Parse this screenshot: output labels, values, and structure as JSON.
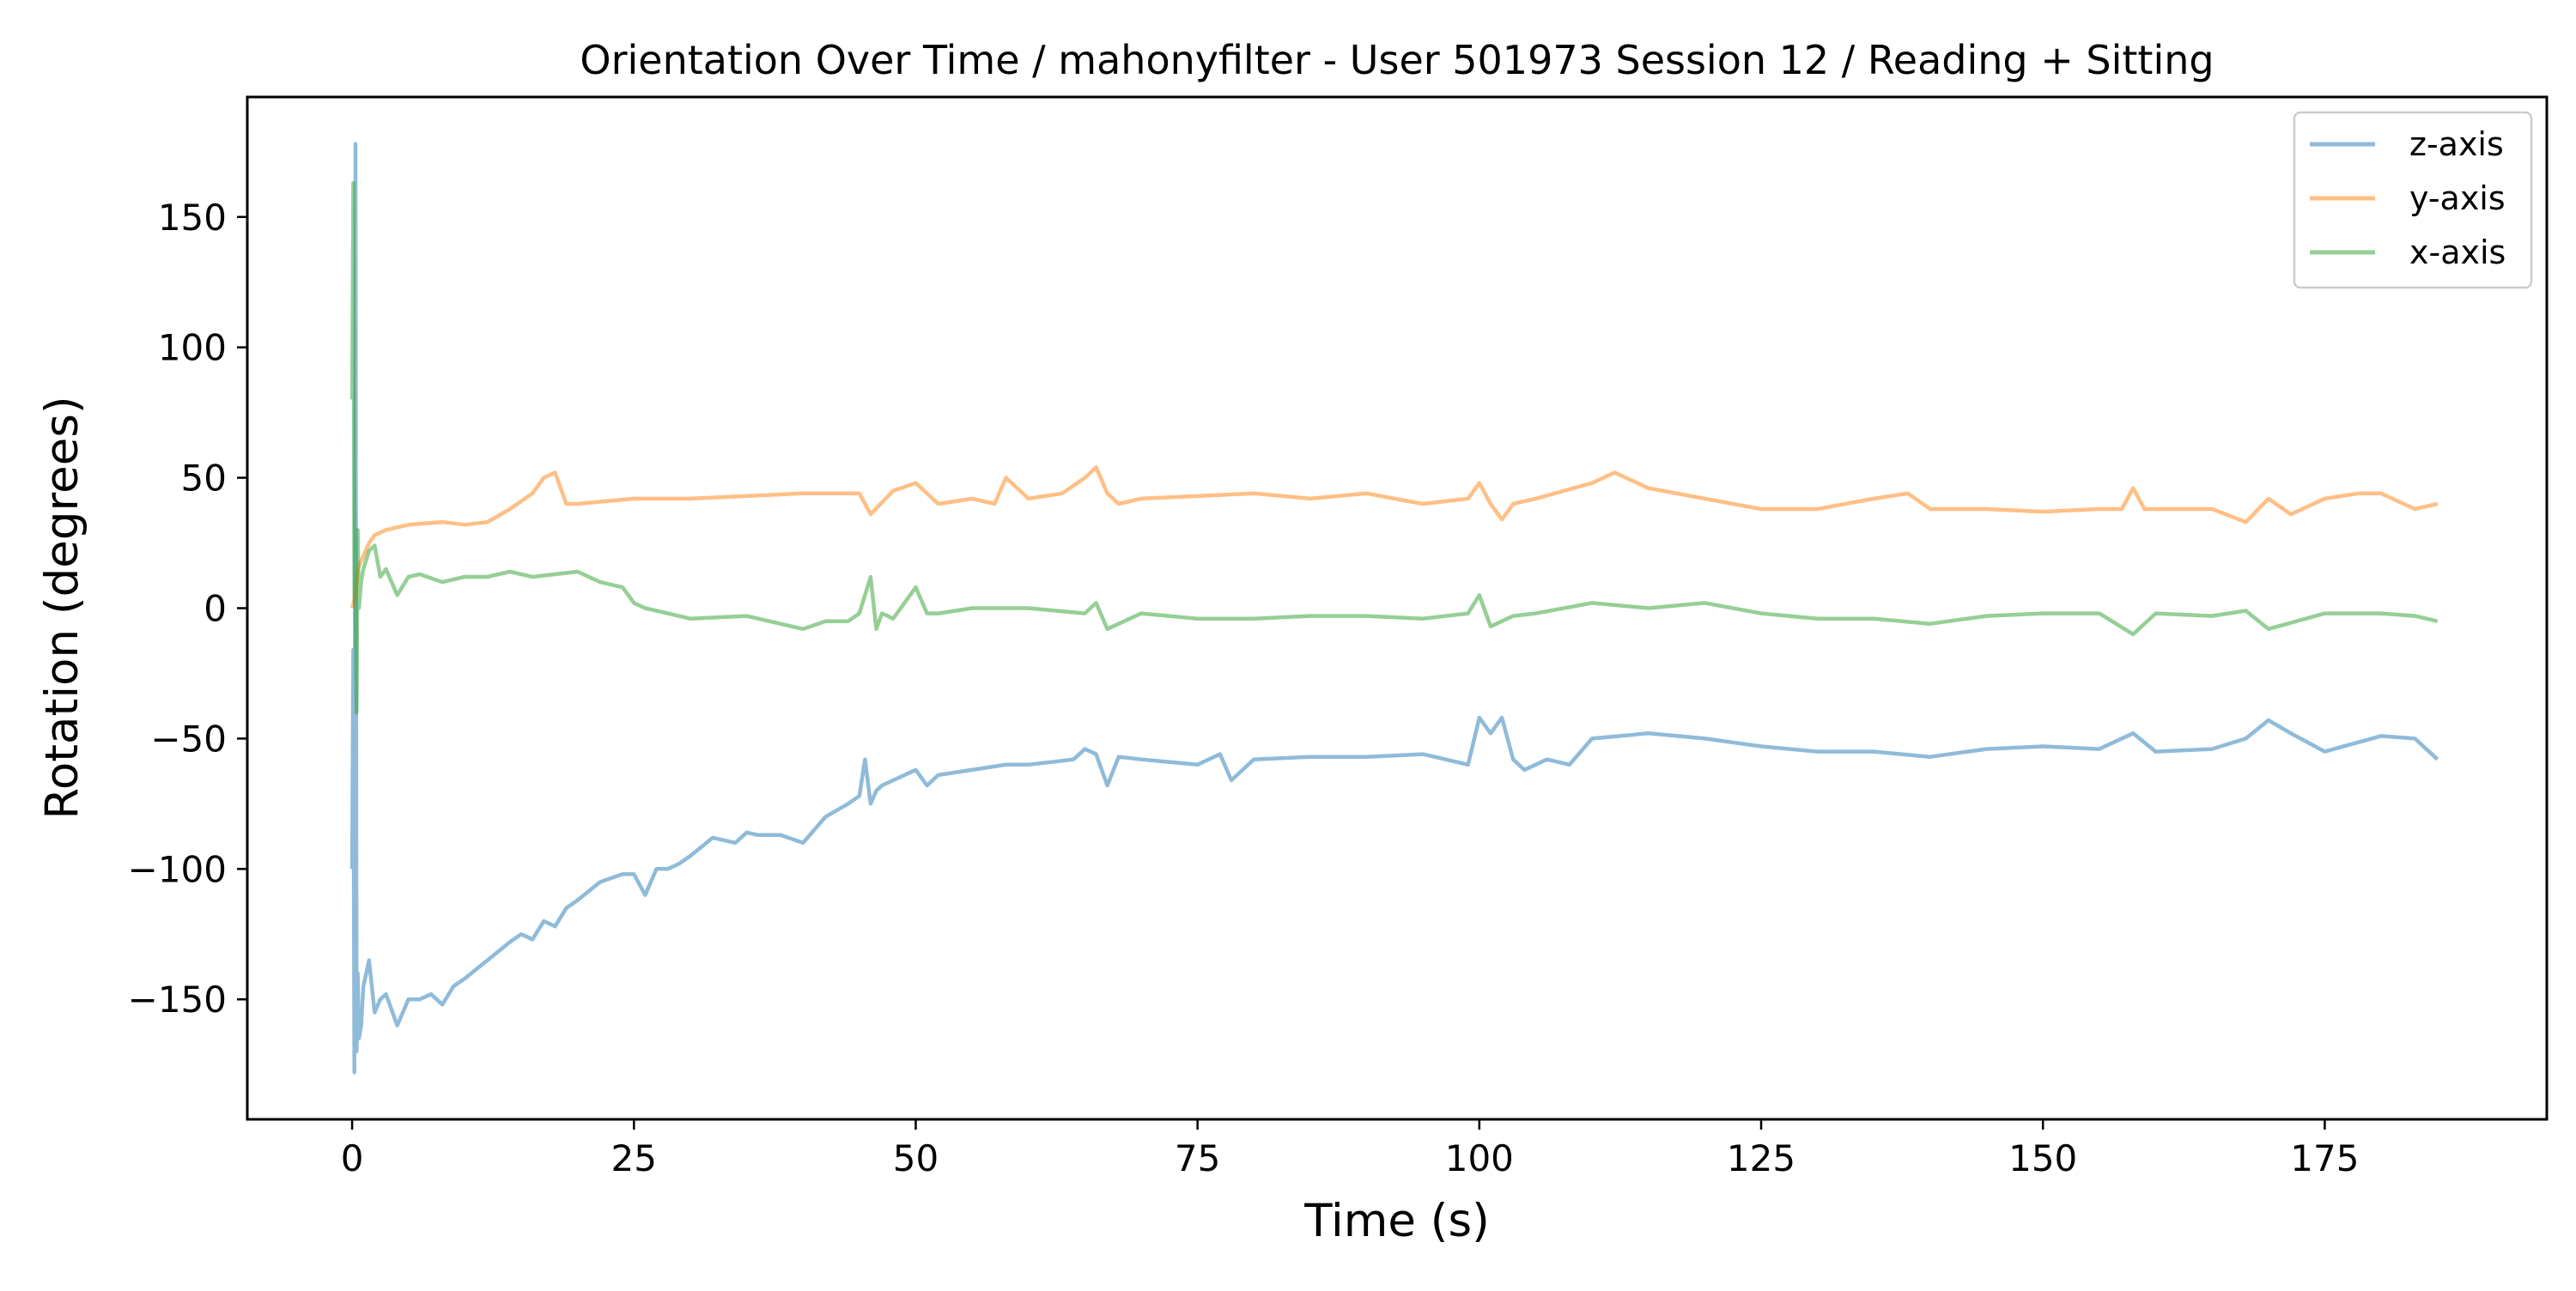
{
  "chart_data": {
    "type": "line",
    "title": "Orientation Over Time / mahonyfilter - User 501973 Session 12 / Reading + Sitting",
    "xlabel": "Time (s)",
    "ylabel": "Rotation (degrees)",
    "xlim": [
      -9.3,
      194.7
    ],
    "ylim": [
      -196,
      196
    ],
    "x_ticks": [
      0,
      25,
      50,
      75,
      100,
      125,
      150,
      175
    ],
    "x_tick_labels": [
      "0",
      "25",
      "50",
      "75",
      "100",
      "125",
      "150",
      "175"
    ],
    "y_ticks": [
      -150,
      -100,
      -50,
      0,
      50,
      100,
      150
    ],
    "y_tick_labels": [
      "−150",
      "−100",
      "−50",
      "0",
      "50",
      "100",
      "150"
    ],
    "grid": false,
    "legend": "top-right",
    "series": [
      {
        "name": "z-axis",
        "color": "#1f77b4",
        "x": [
          0,
          0.1,
          0.2,
          0.3,
          0.4,
          0.5,
          0.6,
          0.8,
          1,
          1.5,
          2,
          2.5,
          3,
          4,
          5,
          6,
          7,
          8,
          9,
          10,
          12,
          14,
          15,
          16,
          17,
          18,
          19,
          20,
          22,
          24,
          25,
          26,
          27,
          28,
          29,
          30,
          32,
          34,
          35,
          36,
          38,
          40,
          42,
          44,
          45,
          45.5,
          46,
          46.5,
          47,
          48,
          50,
          51,
          52,
          55,
          58,
          60,
          62,
          64,
          65,
          66,
          67,
          68,
          70,
          75,
          77,
          78,
          80,
          85,
          90,
          95,
          99,
          100,
          101,
          102,
          103,
          104,
          105,
          106,
          108,
          110,
          115,
          120,
          125,
          130,
          135,
          140,
          145,
          150,
          155,
          158,
          160,
          165,
          168,
          170,
          172,
          175,
          180,
          183,
          185
        ],
        "values": [
          -100,
          -16,
          -178,
          178,
          -170,
          -140,
          -165,
          -160,
          -145,
          -135,
          -155,
          -150,
          -148,
          -160,
          -150,
          -150,
          -148,
          -152,
          -145,
          -142,
          -135,
          -128,
          -125,
          -127,
          -120,
          -122,
          -115,
          -112,
          -105,
          -102,
          -102,
          -110,
          -100,
          -100,
          -98,
          -95,
          -88,
          -90,
          -86,
          -87,
          -87,
          -90,
          -80,
          -75,
          -72,
          -58,
          -75,
          -70,
          -68,
          -66,
          -62,
          -68,
          -64,
          -62,
          -60,
          -60,
          -59,
          -58,
          -54,
          -56,
          -68,
          -57,
          -58,
          -60,
          -56,
          -66,
          -58,
          -57,
          -57,
          -56,
          -60,
          -42,
          -48,
          -42,
          -58,
          -62,
          -60,
          -58,
          -60,
          -50,
          -48,
          -50,
          -53,
          -55,
          -55,
          -57,
          -54,
          -53,
          -54,
          -48,
          -55,
          -54,
          -50,
          -43,
          -48,
          -55,
          -49,
          -50,
          -58
        ]
      },
      {
        "name": "y-axis",
        "color": "#ff7f0e",
        "x": [
          0,
          0.3,
          0.5,
          1,
          1.5,
          2,
          3,
          5,
          8,
          10,
          12,
          14,
          16,
          17,
          18,
          19,
          20,
          25,
          30,
          35,
          40,
          45,
          46,
          48,
          50,
          52,
          55,
          57,
          58,
          60,
          63,
          65,
          66,
          67,
          68,
          70,
          75,
          80,
          85,
          90,
          95,
          99,
          100,
          101,
          102,
          103,
          105,
          110,
          112,
          115,
          120,
          125,
          130,
          135,
          138,
          140,
          145,
          150,
          155,
          157,
          158,
          159,
          160,
          165,
          168,
          170,
          172,
          175,
          178,
          180,
          183,
          185
        ],
        "values": [
          0,
          5,
          15,
          20,
          25,
          28,
          30,
          32,
          33,
          32,
          33,
          38,
          44,
          50,
          52,
          40,
          40,
          42,
          42,
          43,
          44,
          44,
          36,
          45,
          48,
          40,
          42,
          40,
          50,
          42,
          44,
          50,
          54,
          44,
          40,
          42,
          43,
          44,
          42,
          44,
          40,
          42,
          48,
          40,
          34,
          40,
          42,
          48,
          52,
          46,
          42,
          38,
          38,
          42,
          44,
          38,
          38,
          37,
          38,
          38,
          46,
          38,
          38,
          38,
          33,
          42,
          36,
          42,
          44,
          44,
          38,
          40
        ]
      },
      {
        "name": "x-axis",
        "color": "#2ca02c",
        "x": [
          0,
          0.1,
          0.2,
          0.3,
          0.4,
          0.5,
          0.6,
          0.8,
          1,
          1.5,
          2,
          2.5,
          3,
          4,
          5,
          6,
          8,
          10,
          12,
          14,
          16,
          18,
          20,
          22,
          24,
          25,
          26,
          28,
          30,
          35,
          40,
          42,
          44,
          45,
          46,
          46.5,
          47,
          48,
          50,
          51,
          52,
          55,
          60,
          65,
          66,
          67,
          70,
          75,
          80,
          85,
          90,
          95,
          99,
          100,
          101,
          102,
          103,
          105,
          110,
          115,
          120,
          125,
          130,
          135,
          140,
          145,
          150,
          155,
          158,
          160,
          165,
          168,
          170,
          175,
          180,
          183,
          185
        ],
        "values": [
          80,
          163,
          5,
          0,
          -40,
          30,
          0,
          10,
          15,
          22,
          24,
          12,
          15,
          5,
          12,
          13,
          10,
          12,
          12,
          14,
          12,
          13,
          14,
          10,
          8,
          2,
          0,
          -2,
          -4,
          -3,
          -8,
          -5,
          -5,
          -2,
          12,
          -8,
          -2,
          -4,
          8,
          -2,
          -2,
          0,
          0,
          -2,
          2,
          -8,
          -2,
          -4,
          -4,
          -3,
          -3,
          -4,
          -2,
          5,
          -7,
          -5,
          -3,
          -2,
          2,
          0,
          2,
          -2,
          -4,
          -4,
          -6,
          -3,
          -2,
          -2,
          -10,
          -2,
          -3,
          -1,
          -8,
          -2,
          -2,
          -3,
          -5
        ]
      }
    ]
  }
}
